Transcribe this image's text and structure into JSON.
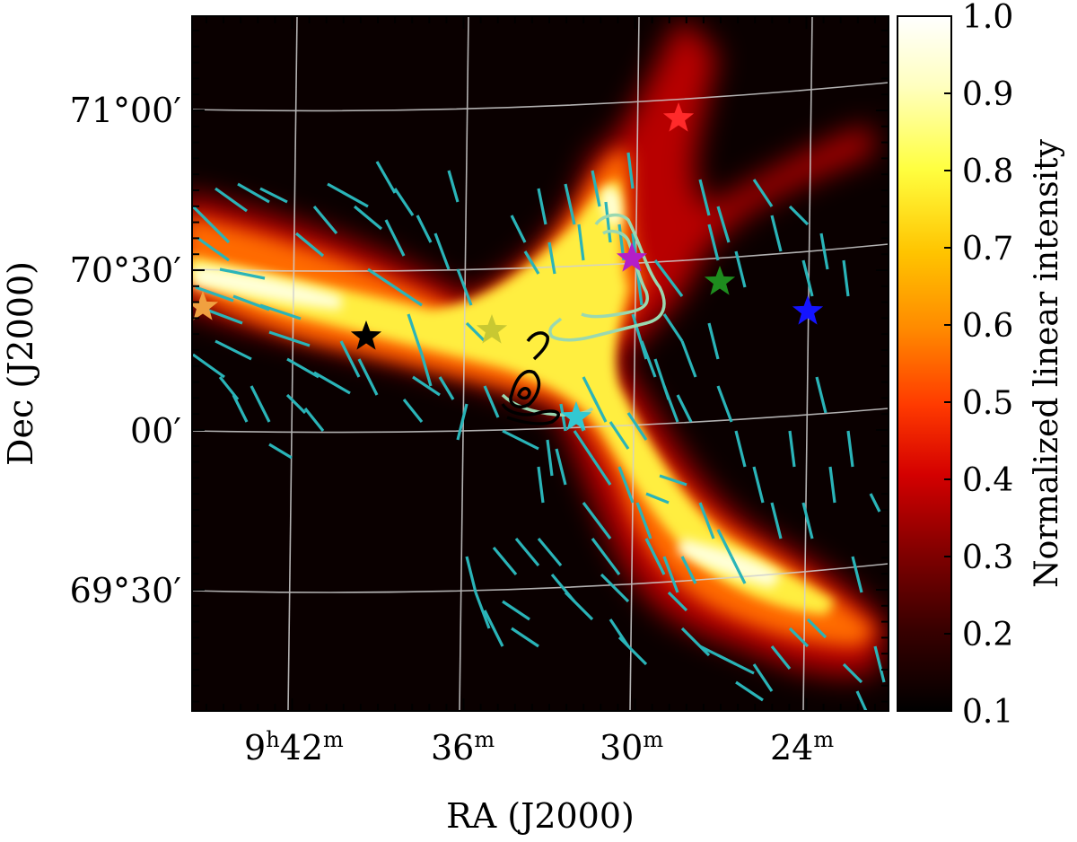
{
  "chart_data": {
    "type": "heatmap",
    "xlabel": "RA (J2000)",
    "ylabel": "Dec (J2000)",
    "x_ticks": [
      {
        "h": "9",
        "hsup": "h",
        "m": "42",
        "msup": "m"
      },
      {
        "m": "36",
        "msup": "m"
      },
      {
        "m": "30",
        "msup": "m"
      },
      {
        "m": "24",
        "msup": "m"
      }
    ],
    "y_ticks": [
      "71°00′",
      "70°30′",
      "00′",
      "69°30′"
    ],
    "colorbar": {
      "label": "Normalized linear intensity",
      "range": [
        0.1,
        1.0
      ],
      "ticks": [
        "1.0",
        "0.9",
        "0.8",
        "0.7",
        "0.6",
        "0.5",
        "0.4",
        "0.3",
        "0.2",
        "0.1"
      ],
      "colormap": [
        "#000000",
        "#3a0000",
        "#8a0000",
        "#d40000",
        "#ff3a00",
        "#ff8a00",
        "#ffc400",
        "#ffff40",
        "#ffffc0",
        "#ffffff"
      ]
    },
    "background_color": "#0a0000",
    "grid": true,
    "grid_color": "#d0d0d0",
    "vector_color": "#2ab4b8",
    "stars": [
      {
        "name": "red-star",
        "color": "#ff2a2a",
        "ra": "9h28.7m",
        "dec": "70°55′"
      },
      {
        "name": "magenta-star",
        "color": "#b41ec8",
        "ra": "9h30.0m",
        "dec": "70°32′"
      },
      {
        "name": "green-star",
        "color": "#1e8c1e",
        "ra": "9h26.8m",
        "dec": "70°26′"
      },
      {
        "name": "blue-star",
        "color": "#1414ff",
        "ra": "9h23.8m",
        "dec": "70°17′"
      },
      {
        "name": "yellow-star",
        "color": "#c8c832",
        "ra": "9h34.9m",
        "dec": "70°13′"
      },
      {
        "name": "black-star",
        "color": "#000000",
        "ra": "9h39.1m",
        "dec": "70°11′"
      },
      {
        "name": "orange-star",
        "color": "#f0a040",
        "ra": "9h45.0m",
        "dec": "70°15′"
      },
      {
        "name": "cyan-star",
        "color": "#32c8d2",
        "ra": "9h32.4m",
        "dec": "70°01′"
      }
    ],
    "contour_colors": [
      "#9ad8b0",
      "#000000"
    ]
  }
}
